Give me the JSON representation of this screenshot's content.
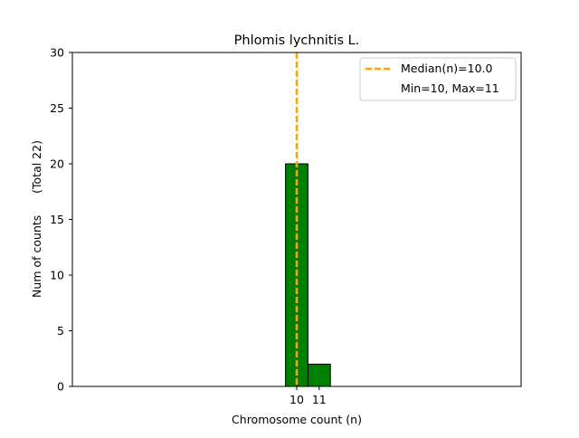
{
  "chart_data": {
    "type": "bar",
    "title": "Phlomis lychnitis L.",
    "xlabel": "Chromosome count (n)",
    "ylabel": "Num of counts      (Total 22)",
    "xlim": [
      0,
      20
    ],
    "ylim": [
      0,
      30
    ],
    "xticks": [
      "10",
      "11"
    ],
    "yticks": [
      "0",
      "5",
      "10",
      "15",
      "20",
      "25",
      "30"
    ],
    "bars": [
      {
        "x": 10,
        "value": 20
      },
      {
        "x": 11,
        "value": 2
      }
    ],
    "median_line": {
      "x": 10,
      "label": "Median(n)=10.0"
    },
    "legend": {
      "placement": "top-right",
      "entries": [
        "Median(n)=10.0",
        "Min=10, Max=11"
      ]
    },
    "colors": {
      "bar": "#008000",
      "bar_edge": "#000000",
      "median": "#ffa500"
    }
  }
}
